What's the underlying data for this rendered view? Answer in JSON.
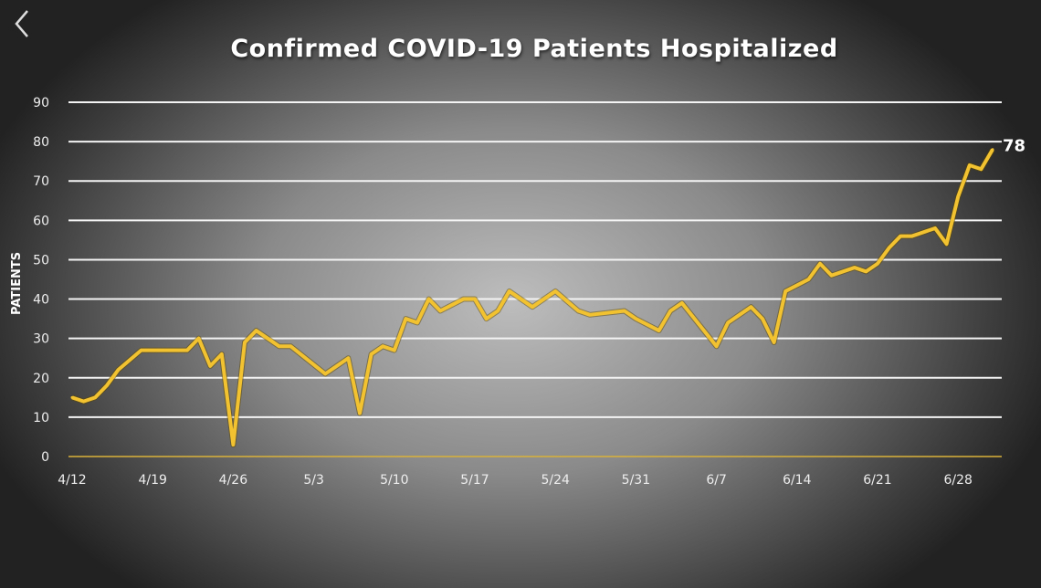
{
  "nav": {
    "back_icon": "chevron-left-icon"
  },
  "chart_data": {
    "type": "line",
    "title": "Confirmed COVID-19 Patients Hospitalized",
    "xlabel": "",
    "ylabel": "PATIENTS",
    "ylim": [
      0,
      90
    ],
    "yticks": [
      0,
      10,
      20,
      30,
      40,
      50,
      60,
      70,
      80,
      90
    ],
    "xticks": [
      "4/12",
      "4/19",
      "4/26",
      "5/3",
      "5/10",
      "5/17",
      "5/24",
      "5/31",
      "6/7",
      "6/14",
      "6/21",
      "6/28"
    ],
    "grid": true,
    "line_color": "#f2c230",
    "end_label": "78",
    "series": [
      {
        "x": [
          "4/12",
          "4/13",
          "4/14",
          "4/15",
          "4/16",
          "4/18",
          "4/22",
          "4/23",
          "4/24",
          "4/25",
          "4/26",
          "4/27",
          "4/28",
          "4/30",
          "5/1",
          "5/4",
          "5/6",
          "5/7",
          "5/8",
          "5/9",
          "5/10",
          "5/11",
          "5/12",
          "5/13",
          "5/14",
          "5/16",
          "5/17",
          "5/18",
          "5/19",
          "5/20",
          "5/22",
          "5/24",
          "5/26",
          "5/27",
          "5/30",
          "5/31",
          "6/2",
          "6/3",
          "6/4",
          "6/7",
          "6/8",
          "6/10",
          "6/11",
          "6/12",
          "6/13",
          "6/15",
          "6/16",
          "6/17",
          "6/19",
          "6/20",
          "6/21",
          "6/22",
          "6/23",
          "6/24",
          "6/26",
          "6/27",
          "6/28",
          "6/29",
          "6/30",
          "7/1"
        ],
        "y": [
          15,
          14,
          15,
          18,
          22,
          27,
          27,
          30,
          23,
          26,
          3,
          29,
          32,
          28,
          28,
          21,
          25,
          11,
          26,
          28,
          27,
          35,
          34,
          40,
          37,
          40,
          40,
          35,
          37,
          42,
          38,
          42,
          37,
          36,
          37,
          35,
          32,
          37,
          39,
          28,
          34,
          38,
          35,
          29,
          42,
          45,
          49,
          46,
          48,
          47,
          49,
          53,
          56,
          56,
          58,
          54,
          66,
          74,
          73,
          78
        ]
      }
    ]
  }
}
